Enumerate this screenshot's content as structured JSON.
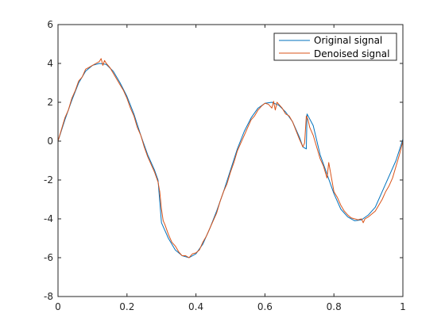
{
  "chart_data": {
    "type": "line",
    "title": "",
    "xlabel": "",
    "ylabel": "",
    "xlim": [
      0,
      1
    ],
    "ylim": [
      -8,
      6
    ],
    "xticks": [
      "0",
      "0.2",
      "0.4",
      "0.6",
      "0.8",
      "1"
    ],
    "yticks": [
      "-8",
      "-6",
      "-4",
      "-2",
      "0",
      "2",
      "4",
      "6"
    ],
    "grid": false,
    "legend_position": "top-right",
    "series": [
      {
        "name": "Original signal",
        "color": "#0072bd",
        "x": [
          0,
          0.02,
          0.04,
          0.06,
          0.08,
          0.1,
          0.12,
          0.14,
          0.16,
          0.18,
          0.2,
          0.22,
          0.24,
          0.26,
          0.28,
          0.29,
          0.3,
          0.31,
          0.32,
          0.34,
          0.36,
          0.38,
          0.4,
          0.42,
          0.44,
          0.46,
          0.48,
          0.5,
          0.52,
          0.54,
          0.56,
          0.58,
          0.6,
          0.62,
          0.64,
          0.66,
          0.68,
          0.7,
          0.71,
          0.72,
          0.722,
          0.74,
          0.76,
          0.78,
          0.8,
          0.82,
          0.84,
          0.86,
          0.88,
          0.9,
          0.92,
          0.94,
          0.96,
          0.98,
          1.0
        ],
        "y": [
          0,
          1.1,
          2.1,
          3,
          3.6,
          3.9,
          4.0,
          3.95,
          3.6,
          3.0,
          2.3,
          1.4,
          0.3,
          -0.7,
          -1.5,
          -2.0,
          -4.2,
          -4.6,
          -5.0,
          -5.6,
          -5.9,
          -6.0,
          -5.8,
          -5.3,
          -4.5,
          -3.6,
          -2.6,
          -1.5,
          -0.4,
          0.5,
          1.2,
          1.7,
          1.95,
          2.0,
          1.85,
          1.5,
          1.0,
          0.2,
          -0.3,
          -0.4,
          1.4,
          0.8,
          -0.7,
          -1.7,
          -2.7,
          -3.5,
          -3.9,
          -4.1,
          -4.05,
          -3.8,
          -3.4,
          -2.6,
          -1.8,
          -1.0,
          0.1
        ]
      },
      {
        "name": "Denoised signal",
        "color": "#d95319",
        "x": [
          0,
          0.01,
          0.02,
          0.03,
          0.04,
          0.05,
          0.06,
          0.07,
          0.08,
          0.09,
          0.1,
          0.11,
          0.12,
          0.125,
          0.13,
          0.135,
          0.14,
          0.15,
          0.16,
          0.17,
          0.18,
          0.19,
          0.2,
          0.21,
          0.22,
          0.23,
          0.24,
          0.25,
          0.26,
          0.27,
          0.28,
          0.29,
          0.295,
          0.3,
          0.305,
          0.31,
          0.32,
          0.33,
          0.34,
          0.35,
          0.36,
          0.37,
          0.38,
          0.39,
          0.4,
          0.41,
          0.42,
          0.43,
          0.44,
          0.45,
          0.46,
          0.47,
          0.48,
          0.49,
          0.5,
          0.51,
          0.52,
          0.53,
          0.54,
          0.55,
          0.56,
          0.57,
          0.58,
          0.59,
          0.6,
          0.61,
          0.62,
          0.625,
          0.63,
          0.635,
          0.64,
          0.65,
          0.66,
          0.67,
          0.68,
          0.69,
          0.7,
          0.71,
          0.715,
          0.72,
          0.725,
          0.73,
          0.74,
          0.75,
          0.76,
          0.77,
          0.78,
          0.785,
          0.79,
          0.8,
          0.81,
          0.82,
          0.83,
          0.84,
          0.85,
          0.86,
          0.87,
          0.88,
          0.885,
          0.89,
          0.9,
          0.91,
          0.92,
          0.93,
          0.94,
          0.95,
          0.96,
          0.97,
          0.98,
          0.99,
          1.0
        ],
        "y": [
          0,
          0.6,
          1.2,
          1.6,
          2.2,
          2.6,
          3.1,
          3.3,
          3.7,
          3.8,
          3.9,
          4.0,
          4.1,
          4.25,
          3.9,
          4.15,
          4.0,
          3.8,
          3.5,
          3.2,
          2.9,
          2.6,
          2.2,
          1.7,
          1.3,
          0.7,
          0.3,
          -0.3,
          -0.8,
          -1.2,
          -1.6,
          -2.1,
          -2.6,
          -3.5,
          -4.1,
          -4.3,
          -4.8,
          -5.2,
          -5.4,
          -5.7,
          -5.9,
          -5.9,
          -6.0,
          -5.8,
          -5.75,
          -5.6,
          -5.2,
          -4.9,
          -4.5,
          -4.1,
          -3.7,
          -3.1,
          -2.6,
          -2.2,
          -1.6,
          -1.1,
          -0.5,
          -0.1,
          0.3,
          0.7,
          1.1,
          1.3,
          1.6,
          1.8,
          1.95,
          1.9,
          1.7,
          2.05,
          1.6,
          2.0,
          1.9,
          1.7,
          1.4,
          1.3,
          1.0,
          0.55,
          0.1,
          -0.3,
          -0.1,
          1.3,
          1.1,
          0.7,
          0.3,
          -0.3,
          -0.9,
          -1.3,
          -1.9,
          -1.1,
          -1.6,
          -2.6,
          -2.9,
          -3.3,
          -3.6,
          -3.8,
          -3.95,
          -4.0,
          -4.05,
          -4.0,
          -4.2,
          -4.0,
          -3.9,
          -3.75,
          -3.6,
          -3.3,
          -3.0,
          -2.6,
          -2.3,
          -1.9,
          -1.3,
          -0.7,
          0.0
        ]
      }
    ]
  }
}
